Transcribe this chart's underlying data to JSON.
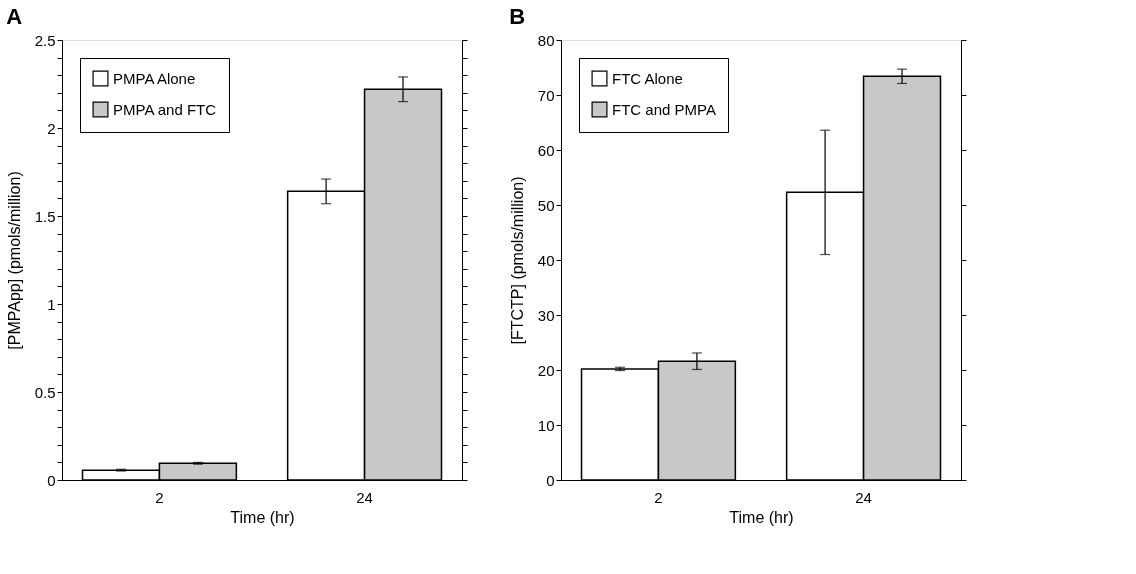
{
  "chart_data": [
    {
      "type": "bar",
      "title": "A",
      "xlabel": "Time (hr)",
      "ylabel": "[PMPApp] (pmols/million)",
      "categories": [
        "2",
        "24"
      ],
      "series": [
        {
          "name": "PMPA Alone",
          "color": "#ffffff",
          "values": [
            0.056,
            1.64
          ],
          "errors": [
            0.005,
            0.07
          ]
        },
        {
          "name": "PMPA and FTC",
          "color": "#c8c8c8",
          "values": [
            0.095,
            2.22
          ],
          "errors": [
            0.005,
            0.07
          ]
        }
      ],
      "ylim": [
        0,
        2.5
      ],
      "yticks": [
        0,
        {
          "value": 0.1,
          "label": null
        },
        {
          "value": 0.2,
          "label": null
        },
        {
          "value": 0.3,
          "label": null
        },
        {
          "value": 0.4,
          "label": null
        },
        0.5,
        {
          "value": 0.6,
          "label": null
        },
        {
          "value": 0.7,
          "label": null
        },
        {
          "value": 0.8,
          "label": null
        },
        {
          "value": 0.9,
          "label": null
        },
        1,
        {
          "value": 1.1,
          "label": null
        },
        {
          "value": 1.2,
          "label": null
        },
        {
          "value": 1.3,
          "label": null
        },
        {
          "value": 1.4,
          "label": null
        },
        1.5,
        {
          "value": 1.6,
          "label": null
        },
        {
          "value": 1.7,
          "label": null
        },
        {
          "value": 1.8,
          "label": null
        },
        {
          "value": 1.9,
          "label": null
        },
        2,
        {
          "value": 2.1,
          "label": null
        },
        {
          "value": 2.2,
          "label": null
        },
        {
          "value": 2.3,
          "label": null
        },
        {
          "value": 2.4,
          "label": null
        },
        2.5
      ],
      "legend": "top left",
      "grid": false
    },
    {
      "type": "bar",
      "title": "B",
      "xlabel": "Time (hr)",
      "ylabel": "[FTCTP] (pmols/million)",
      "categories": [
        "2",
        "24"
      ],
      "series": [
        {
          "name": "FTC Alone",
          "color": "#ffffff",
          "values": [
            20.2,
            52.3
          ],
          "errors": [
            0.3,
            11.3
          ]
        },
        {
          "name": "FTC and PMPA",
          "color": "#c8c8c8",
          "values": [
            21.6,
            73.4
          ],
          "errors": [
            1.5,
            1.3
          ]
        }
      ],
      "ylim": [
        0,
        80
      ],
      "yticks": [
        0,
        10,
        20,
        30,
        40,
        50,
        60,
        70,
        80
      ],
      "legend": "top left",
      "grid": false
    }
  ]
}
